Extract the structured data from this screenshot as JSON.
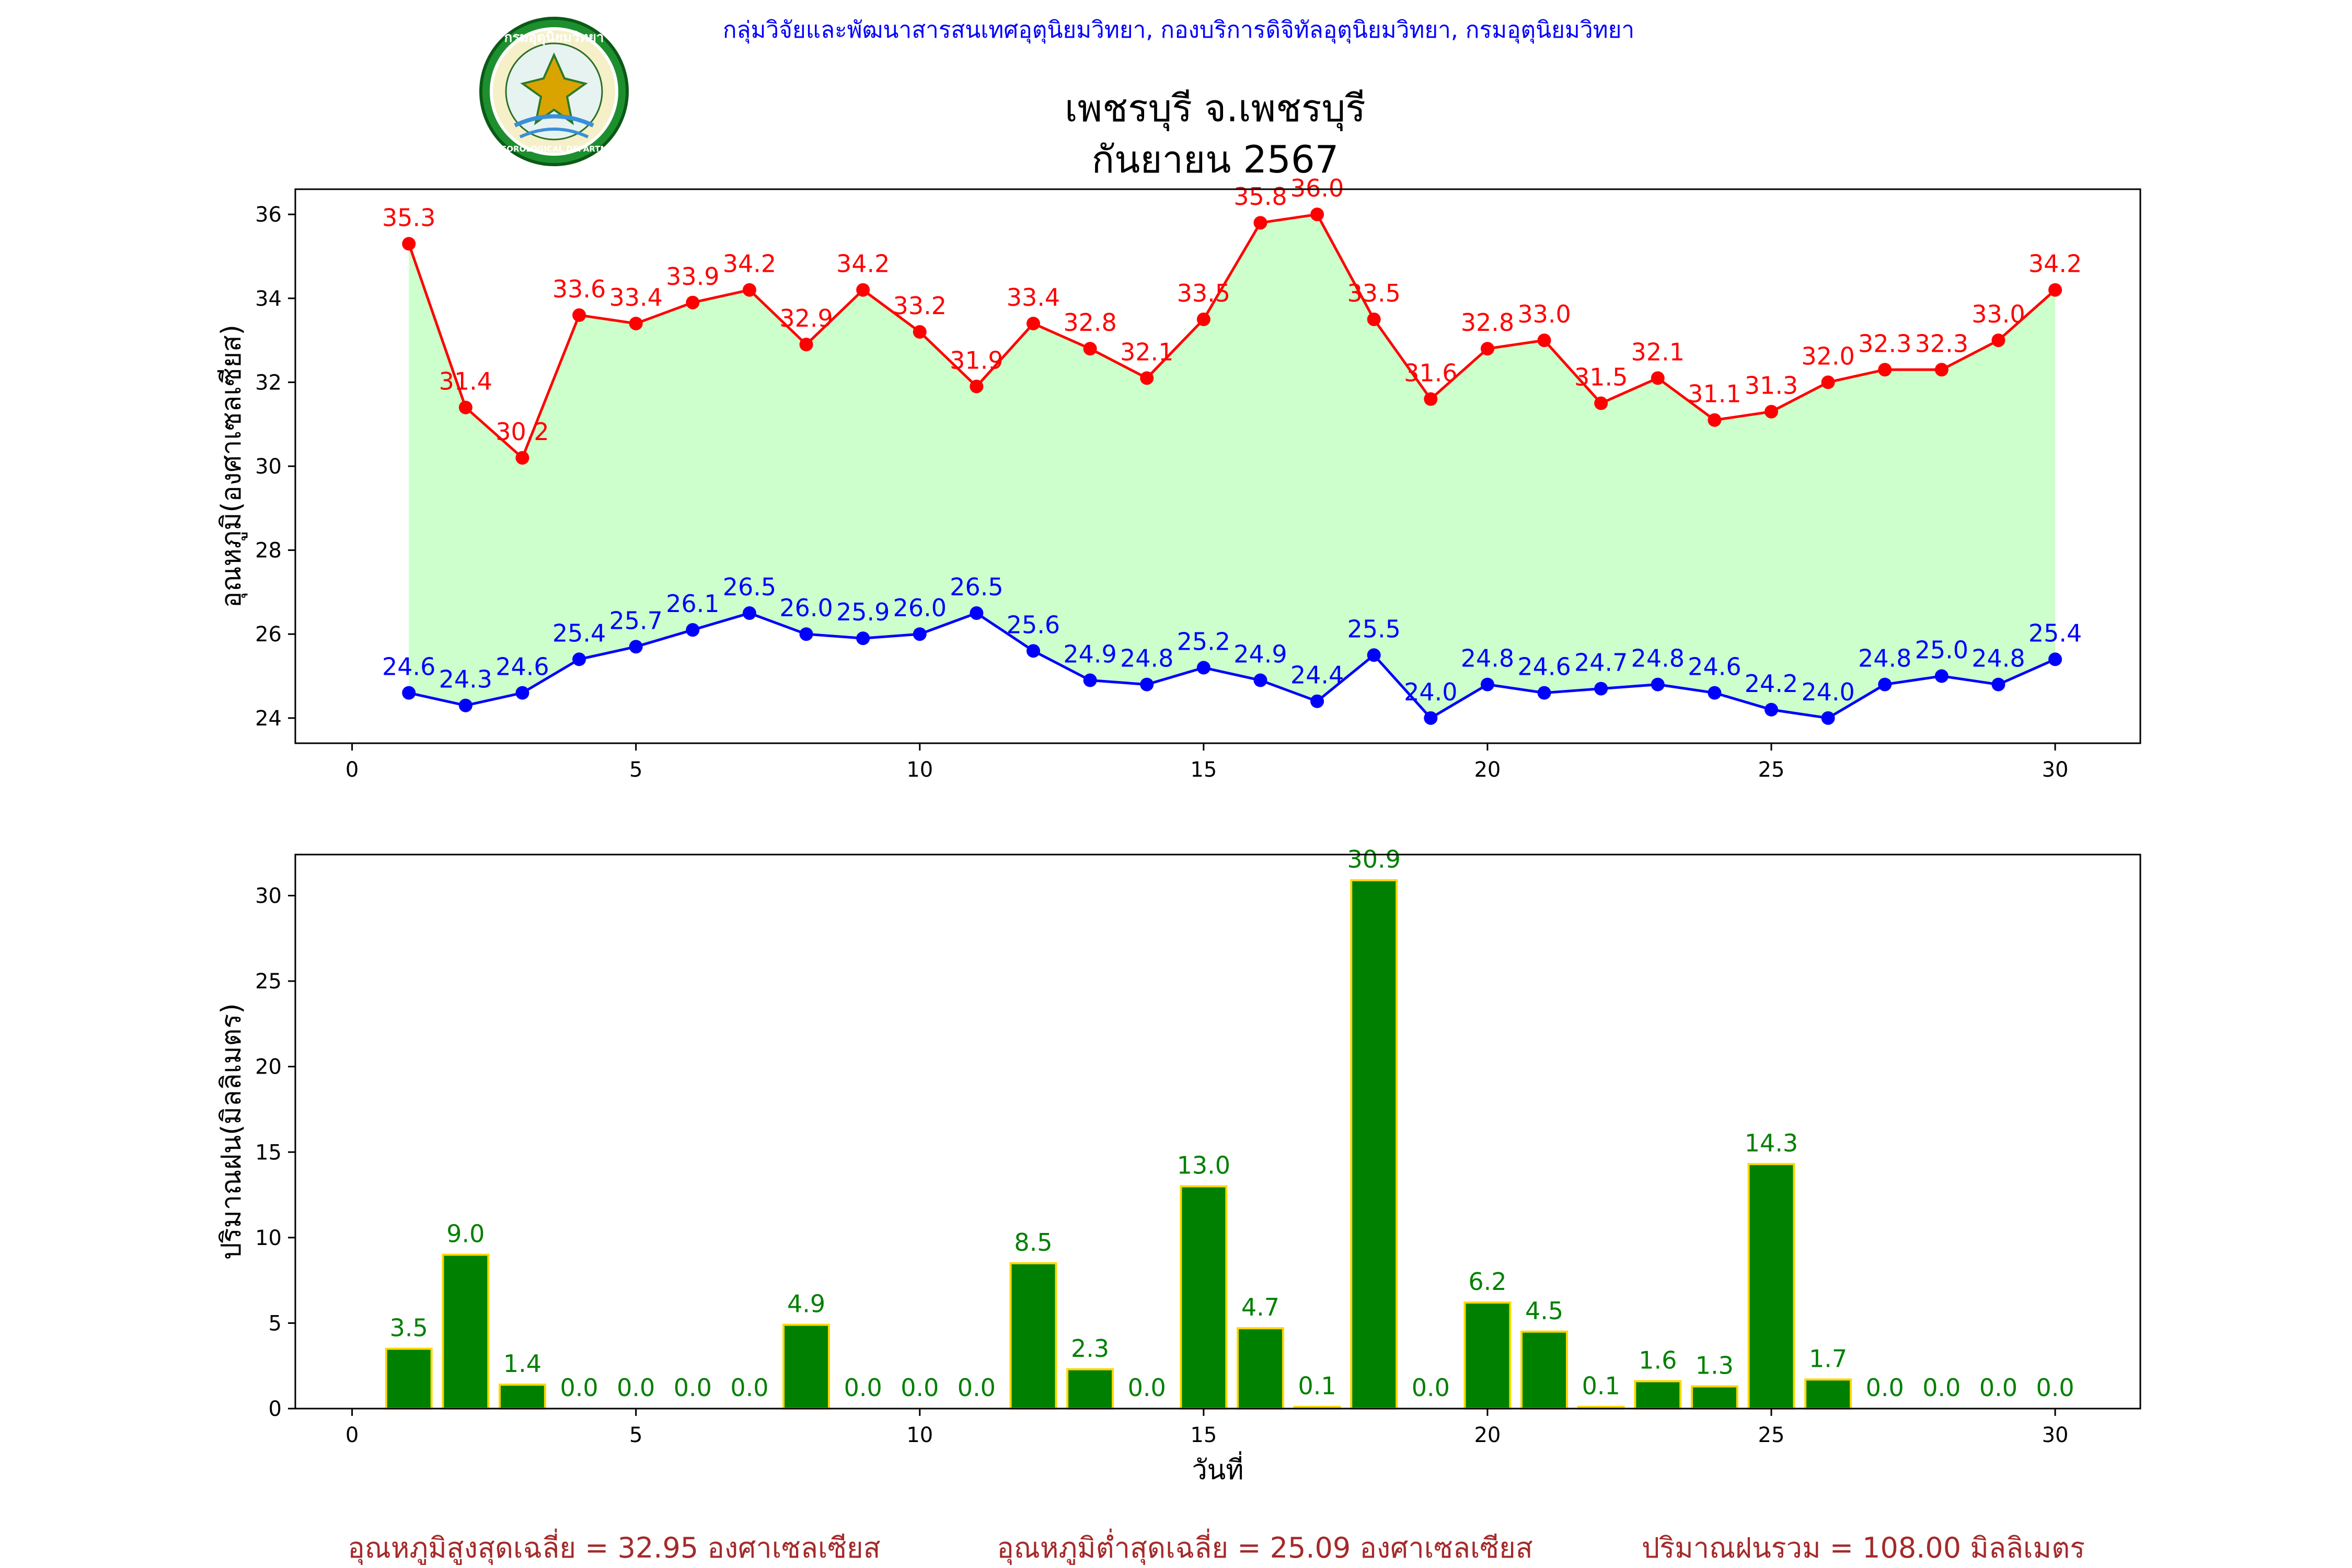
{
  "header": {
    "agency": "กลุ่มวิจัยและพัฒนาสารสนเทศอุตุนิยมวิทยา, กองบริการดิจิทัลอุตุนิยมวิทยา, กรมอุตุนิยมวิทยา",
    "logo_top_text": "กรมอุตุนิยมวิทยา",
    "logo_bottom_text": "METEOROLOGICAL DEPARTMENT",
    "agency_color": "#0000ff"
  },
  "title": {
    "line1": "เพชรบุรี จ.เพชรบุรี",
    "line2": "กันยายน 2567"
  },
  "footer": {
    "avg_max": "อุณหภูมิสูงสุดเฉลี่ย = 32.95 องศาเซลเซียส",
    "avg_min": "อุณหภูมิต่ำสุดเฉลี่ย = 25.09 องศาเซลเซียส",
    "rain_total": "ปริมาณฝนรวม = 108.00 มิลลิเมตร",
    "color": "#a52a2a"
  },
  "chart_data": [
    {
      "type": "line",
      "ylabel": "อุณหภูมิ(องศาเซลเซียส)",
      "xlabel": "",
      "x": [
        1,
        2,
        3,
        4,
        5,
        6,
        7,
        8,
        9,
        10,
        11,
        12,
        13,
        14,
        15,
        16,
        17,
        18,
        19,
        20,
        21,
        22,
        23,
        24,
        25,
        26,
        27,
        28,
        29,
        30
      ],
      "xlim": [
        -1,
        31.5
      ],
      "ylim": [
        23.4,
        36.6
      ],
      "xticks": [
        0,
        5,
        10,
        15,
        20,
        25,
        30
      ],
      "yticks": [
        24,
        26,
        28,
        30,
        32,
        34,
        36
      ],
      "fill_between_color": "#ccffcc",
      "series": [
        {
          "color": "#ff0000",
          "values": [
            35.3,
            31.4,
            30.2,
            33.6,
            33.4,
            33.9,
            34.2,
            32.9,
            34.2,
            33.2,
            31.9,
            33.4,
            32.8,
            32.1,
            33.5,
            35.8,
            36.0,
            33.5,
            31.6,
            32.8,
            33.0,
            31.5,
            32.1,
            31.1,
            31.3,
            32.0,
            32.3,
            32.3,
            33.0,
            34.2
          ],
          "labels": [
            "35.3",
            "31.4",
            "30.2",
            "33.6",
            "33.4",
            "33.9",
            "34.2",
            "32.9",
            "34.2",
            "33.2",
            "31.9",
            "33.4",
            "32.8",
            "32.1",
            "33.5",
            "35.8",
            "36.0",
            "33.5",
            "31.6",
            "32.8",
            "33.0",
            "31.5",
            "32.1",
            "31.1",
            "31.3",
            "32.0",
            "32.3",
            "32.3",
            "33.0",
            "34.2"
          ]
        },
        {
          "color": "#0000ff",
          "values": [
            24.6,
            24.3,
            24.6,
            25.4,
            25.7,
            26.1,
            26.5,
            26.0,
            25.9,
            26.0,
            26.5,
            25.6,
            24.9,
            24.8,
            25.2,
            24.9,
            24.4,
            25.5,
            24.0,
            24.8,
            24.6,
            24.7,
            24.8,
            24.6,
            24.2,
            24.0,
            24.8,
            25.0,
            24.8,
            25.4
          ],
          "labels": [
            "24.6",
            "24.3",
            "24.6",
            "25.4",
            "25.7",
            "26.1",
            "26.5",
            "26.0",
            "25.9",
            "26.0",
            "26.5",
            "25.6",
            "24.9",
            "24.8",
            "25.2",
            "24.9",
            "24.4",
            "25.5",
            "24.0",
            "24.8",
            "24.6",
            "24.7",
            "24.8",
            "24.6",
            "24.2",
            "24.0",
            "24.8",
            "25.0",
            "24.8",
            "25.4"
          ]
        }
      ]
    },
    {
      "type": "bar",
      "ylabel": "ปริมาณฝน(มิลลิเมตร)",
      "xlabel": "วันที่",
      "x": [
        1,
        2,
        3,
        4,
        5,
        6,
        7,
        8,
        9,
        10,
        11,
        12,
        13,
        14,
        15,
        16,
        17,
        18,
        19,
        20,
        21,
        22,
        23,
        24,
        25,
        26,
        27,
        28,
        29,
        30
      ],
      "xlim": [
        -1,
        31.5
      ],
      "ylim": [
        0,
        32.4
      ],
      "xticks": [
        0,
        5,
        10,
        15,
        20,
        25,
        30
      ],
      "yticks": [
        0,
        5,
        10,
        15,
        20,
        25,
        30
      ],
      "bar_color": "#008000",
      "edge_color": "#ffd700",
      "label_color": "#008000",
      "values": [
        3.5,
        9.0,
        1.4,
        0.0,
        0.0,
        0.0,
        0.0,
        4.9,
        0.0,
        0.0,
        0.0,
        8.5,
        2.3,
        0.0,
        13.0,
        4.7,
        0.1,
        30.9,
        0.0,
        6.2,
        4.5,
        0.1,
        1.6,
        1.3,
        14.3,
        1.7,
        0.0,
        0.0,
        0.0,
        0.0
      ],
      "labels": [
        "3.5",
        "9.0",
        "1.4",
        "0.0",
        "0.0",
        "0.0",
        "0.0",
        "4.9",
        "0.0",
        "0.0",
        "0.0",
        "8.5",
        "2.3",
        "0.0",
        "13.0",
        "4.7",
        "0.1",
        "30.9",
        "0.0",
        "6.2",
        "4.5",
        "0.1",
        "1.6",
        "1.3",
        "14.3",
        "1.7",
        "0.0",
        "0.0",
        "0.0",
        "0.0"
      ]
    }
  ]
}
